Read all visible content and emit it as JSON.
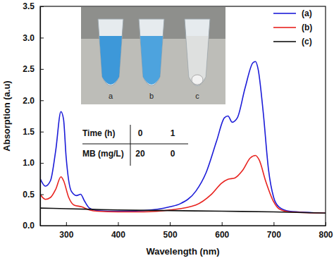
{
  "chart_data": {
    "type": "line",
    "x_label": "Wavelength (nm)",
    "y_label": "Absorption (a.u)",
    "xlim": [
      250,
      800
    ],
    "xticks": [
      300,
      400,
      500,
      600,
      700,
      800
    ],
    "ylim": [
      0,
      3.5
    ],
    "yticks": [
      {
        "value": 0,
        "label": "0.0"
      },
      0.5,
      {
        "value": 1,
        "label": "1.0"
      },
      1.5,
      {
        "value": 2,
        "label": "2.0"
      },
      2.5,
      {
        "value": 3,
        "label": "3.0"
      },
      3.5
    ],
    "legend": "upper right",
    "series": [
      {
        "name": "(a)",
        "color": "#1c1cd8",
        "x": [
          250,
          260,
          270,
          280,
          290,
          295,
          300,
          310,
          320,
          328,
          335,
          345,
          360,
          400,
          450,
          500,
          520,
          550,
          570,
          590,
          605,
          612,
          620,
          630,
          645,
          660,
          665,
          670,
          680,
          690,
          700,
          710,
          730,
          800
        ],
        "values": [
          0.75,
          0.63,
          0.72,
          1.2,
          1.82,
          1.7,
          1.1,
          0.55,
          0.48,
          0.5,
          0.4,
          0.28,
          0.24,
          0.23,
          0.24,
          0.3,
          0.35,
          0.55,
          0.85,
          1.35,
          1.72,
          1.75,
          1.65,
          1.72,
          2.2,
          2.6,
          2.62,
          2.5,
          1.8,
          0.9,
          0.45,
          0.3,
          0.23,
          0.2
        ]
      },
      {
        "name": "(b)",
        "color": "#e8231f",
        "x": [
          250,
          260,
          270,
          280,
          290,
          295,
          305,
          315,
          330,
          345,
          360,
          400,
          450,
          500,
          550,
          580,
          600,
          612,
          625,
          640,
          655,
          665,
          672,
          685,
          700,
          710,
          730,
          800
        ],
        "values": [
          0.5,
          0.42,
          0.45,
          0.58,
          0.78,
          0.72,
          0.45,
          0.33,
          0.3,
          0.25,
          0.23,
          0.22,
          0.22,
          0.25,
          0.33,
          0.5,
          0.68,
          0.74,
          0.76,
          0.88,
          1.08,
          1.12,
          1.05,
          0.7,
          0.38,
          0.27,
          0.22,
          0.2
        ]
      },
      {
        "name": "(c)",
        "color": "#111111",
        "x": [
          250,
          300,
          350,
          400,
          500,
          600,
          700,
          800
        ],
        "values": [
          0.28,
          0.27,
          0.26,
          0.25,
          0.24,
          0.23,
          0.22,
          0.2
        ]
      }
    ],
    "annotations": {
      "photo_labels": [
        "a",
        "b",
        "c"
      ],
      "inset_table": {
        "rows": [
          [
            "Time (h)",
            0,
            1
          ],
          [
            "MB (mg/L)",
            20,
            0
          ]
        ]
      }
    }
  }
}
